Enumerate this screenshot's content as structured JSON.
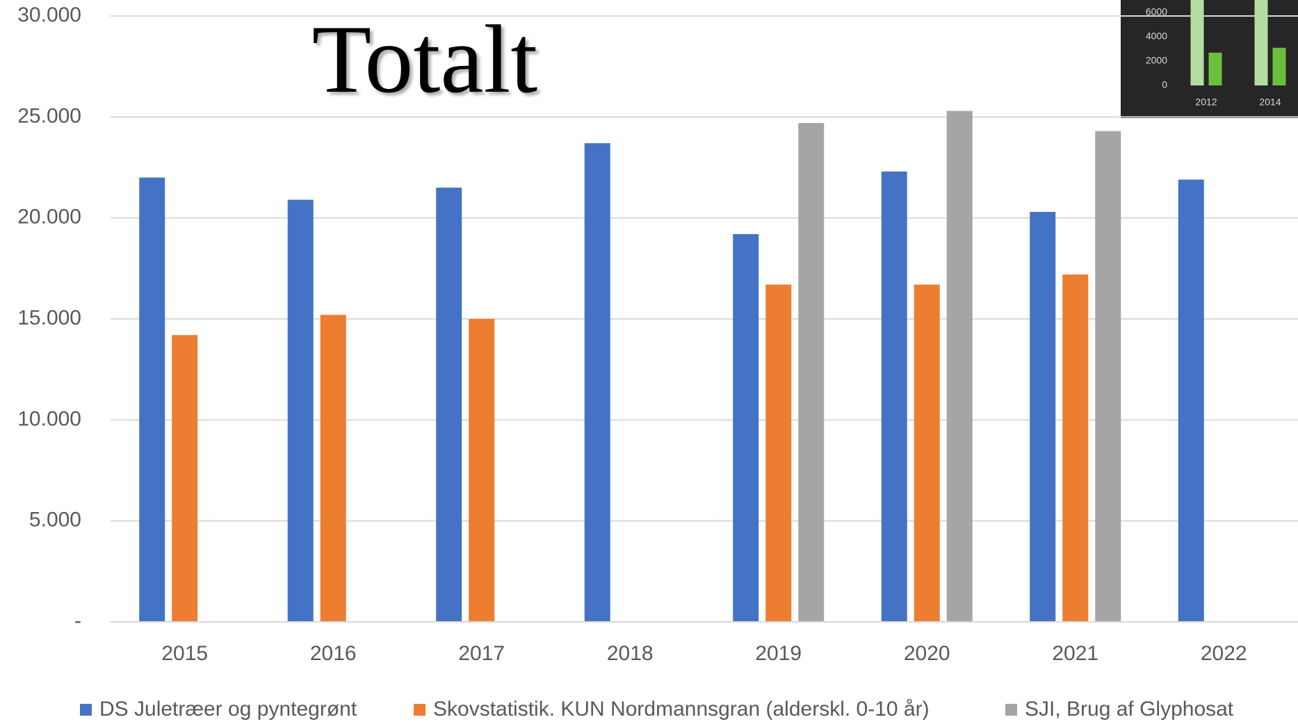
{
  "chart_data": [
    {
      "type": "bar",
      "title": "Totalt",
      "categories": [
        "2015",
        "2016",
        "2017",
        "2018",
        "2019",
        "2020",
        "2021",
        "2022"
      ],
      "series": [
        {
          "name": "DS Juletræer og pyntegrønt",
          "color": "#4472c4",
          "values": [
            22000,
            20900,
            21500,
            23700,
            19200,
            22300,
            20300,
            21900
          ]
        },
        {
          "name": "Skovstatistik. KUN Nordmannsgran (alderskl. 0-10 år)",
          "color": "#ed7d31",
          "values": [
            14200,
            15200,
            15000,
            null,
            16700,
            16700,
            17200,
            null
          ]
        },
        {
          "name": "SJI, Brug af Glyphosat",
          "color": "#a5a5a5",
          "values": [
            null,
            null,
            null,
            null,
            24700,
            25300,
            24300,
            null
          ]
        }
      ],
      "ylim": [
        0,
        30000
      ],
      "yticks": [
        {
          "value": 0,
          "label": "-"
        },
        {
          "value": 5000,
          "label": "5.000"
        },
        {
          "value": 10000,
          "label": "10.000"
        },
        {
          "value": 15000,
          "label": "15.000"
        },
        {
          "value": 20000,
          "label": "20.000"
        },
        {
          "value": 25000,
          "label": "25.000"
        },
        {
          "value": 30000,
          "label": "30.000"
        }
      ],
      "grid": true,
      "legend": "bottom"
    },
    {
      "type": "bar",
      "categories": [
        "2012",
        "2014"
      ],
      "series": [
        {
          "color": "#b6dca2",
          "values": [
            8000,
            8000
          ]
        },
        {
          "color": "#6cbf3c",
          "values": [
            2700,
            3100
          ]
        }
      ],
      "ylim": [
        0,
        7000
      ],
      "yticks": [
        0,
        2000,
        4000,
        6000
      ]
    }
  ]
}
